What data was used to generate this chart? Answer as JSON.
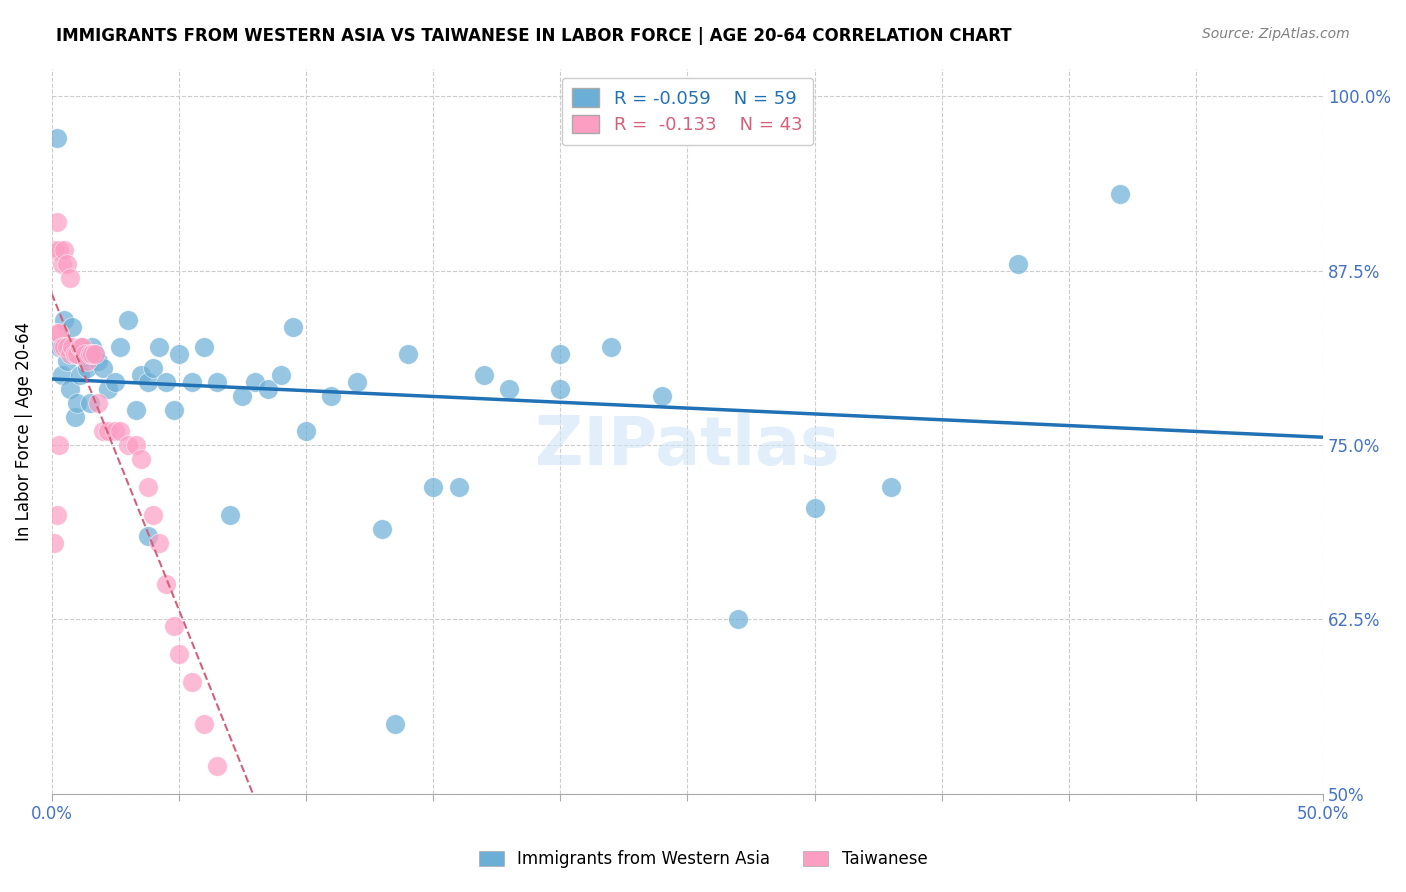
{
  "title": "IMMIGRANTS FROM WESTERN ASIA VS TAIWANESE IN LABOR FORCE | AGE 20-64 CORRELATION CHART",
  "source": "Source: ZipAtlas.com",
  "xlabel": "",
  "ylabel": "In Labor Force | Age 20-64",
  "xlim": [
    0.0,
    0.5
  ],
  "ylim": [
    0.5,
    1.02
  ],
  "xticks": [
    0.0,
    0.05,
    0.1,
    0.15,
    0.2,
    0.25,
    0.3,
    0.35,
    0.4,
    0.45,
    0.5
  ],
  "xticklabels": [
    "0.0%",
    "",
    "",
    "",
    "",
    "",
    "",
    "",
    "",
    "",
    "50.0%"
  ],
  "yticks": [
    0.5,
    0.625,
    0.75,
    0.875,
    1.0
  ],
  "yticklabels": [
    "50%",
    "62.5%",
    "75.0%",
    "87.5%",
    "100.0%"
  ],
  "blue_R": -0.059,
  "blue_N": 59,
  "pink_R": -0.133,
  "pink_N": 43,
  "blue_color": "#6baed6",
  "pink_color": "#fc9dc2",
  "blue_line_color": "#2171b5",
  "pink_line_color": "#d4607a",
  "watermark": "ZIPatlas",
  "blue_points_x": [
    0.002,
    0.003,
    0.004,
    0.005,
    0.006,
    0.007,
    0.008,
    0.009,
    0.01,
    0.011,
    0.012,
    0.013,
    0.014,
    0.015,
    0.016,
    0.017,
    0.018,
    0.02,
    0.022,
    0.025,
    0.027,
    0.03,
    0.033,
    0.035,
    0.038,
    0.04,
    0.042,
    0.045,
    0.048,
    0.05,
    0.055,
    0.06,
    0.065,
    0.07,
    0.075,
    0.08,
    0.085,
    0.09,
    0.1,
    0.11,
    0.12,
    0.13,
    0.14,
    0.15,
    0.16,
    0.17,
    0.18,
    0.2,
    0.22,
    0.24,
    0.27,
    0.3,
    0.33,
    0.38,
    0.42,
    0.038,
    0.2,
    0.095,
    0.135
  ],
  "blue_points_y": [
    0.97,
    0.82,
    0.8,
    0.84,
    0.81,
    0.79,
    0.835,
    0.77,
    0.78,
    0.8,
    0.82,
    0.813,
    0.805,
    0.78,
    0.82,
    0.815,
    0.81,
    0.805,
    0.79,
    0.795,
    0.82,
    0.84,
    0.775,
    0.8,
    0.795,
    0.805,
    0.82,
    0.795,
    0.775,
    0.815,
    0.795,
    0.82,
    0.795,
    0.7,
    0.785,
    0.795,
    0.79,
    0.8,
    0.76,
    0.785,
    0.795,
    0.69,
    0.815,
    0.72,
    0.72,
    0.8,
    0.79,
    0.79,
    0.82,
    0.785,
    0.625,
    0.705,
    0.72,
    0.88,
    0.93,
    0.685,
    0.815,
    0.835,
    0.55
  ],
  "pink_points_x": [
    0.001,
    0.002,
    0.003,
    0.004,
    0.005,
    0.006,
    0.007,
    0.008,
    0.009,
    0.01,
    0.011,
    0.012,
    0.013,
    0.014,
    0.015,
    0.016,
    0.017,
    0.018,
    0.02,
    0.022,
    0.025,
    0.027,
    0.03,
    0.033,
    0.035,
    0.038,
    0.04,
    0.042,
    0.045,
    0.048,
    0.05,
    0.055,
    0.06,
    0.065,
    0.003,
    0.004,
    0.005,
    0.006,
    0.007,
    0.002,
    0.001,
    0.003,
    0.002
  ],
  "pink_points_y": [
    0.89,
    0.83,
    0.83,
    0.82,
    0.82,
    0.82,
    0.815,
    0.82,
    0.815,
    0.815,
    0.82,
    0.82,
    0.815,
    0.81,
    0.815,
    0.815,
    0.815,
    0.78,
    0.76,
    0.76,
    0.76,
    0.76,
    0.75,
    0.75,
    0.74,
    0.72,
    0.7,
    0.68,
    0.65,
    0.62,
    0.6,
    0.58,
    0.55,
    0.52,
    0.89,
    0.88,
    0.89,
    0.88,
    0.87,
    0.91,
    0.68,
    0.75,
    0.7
  ]
}
